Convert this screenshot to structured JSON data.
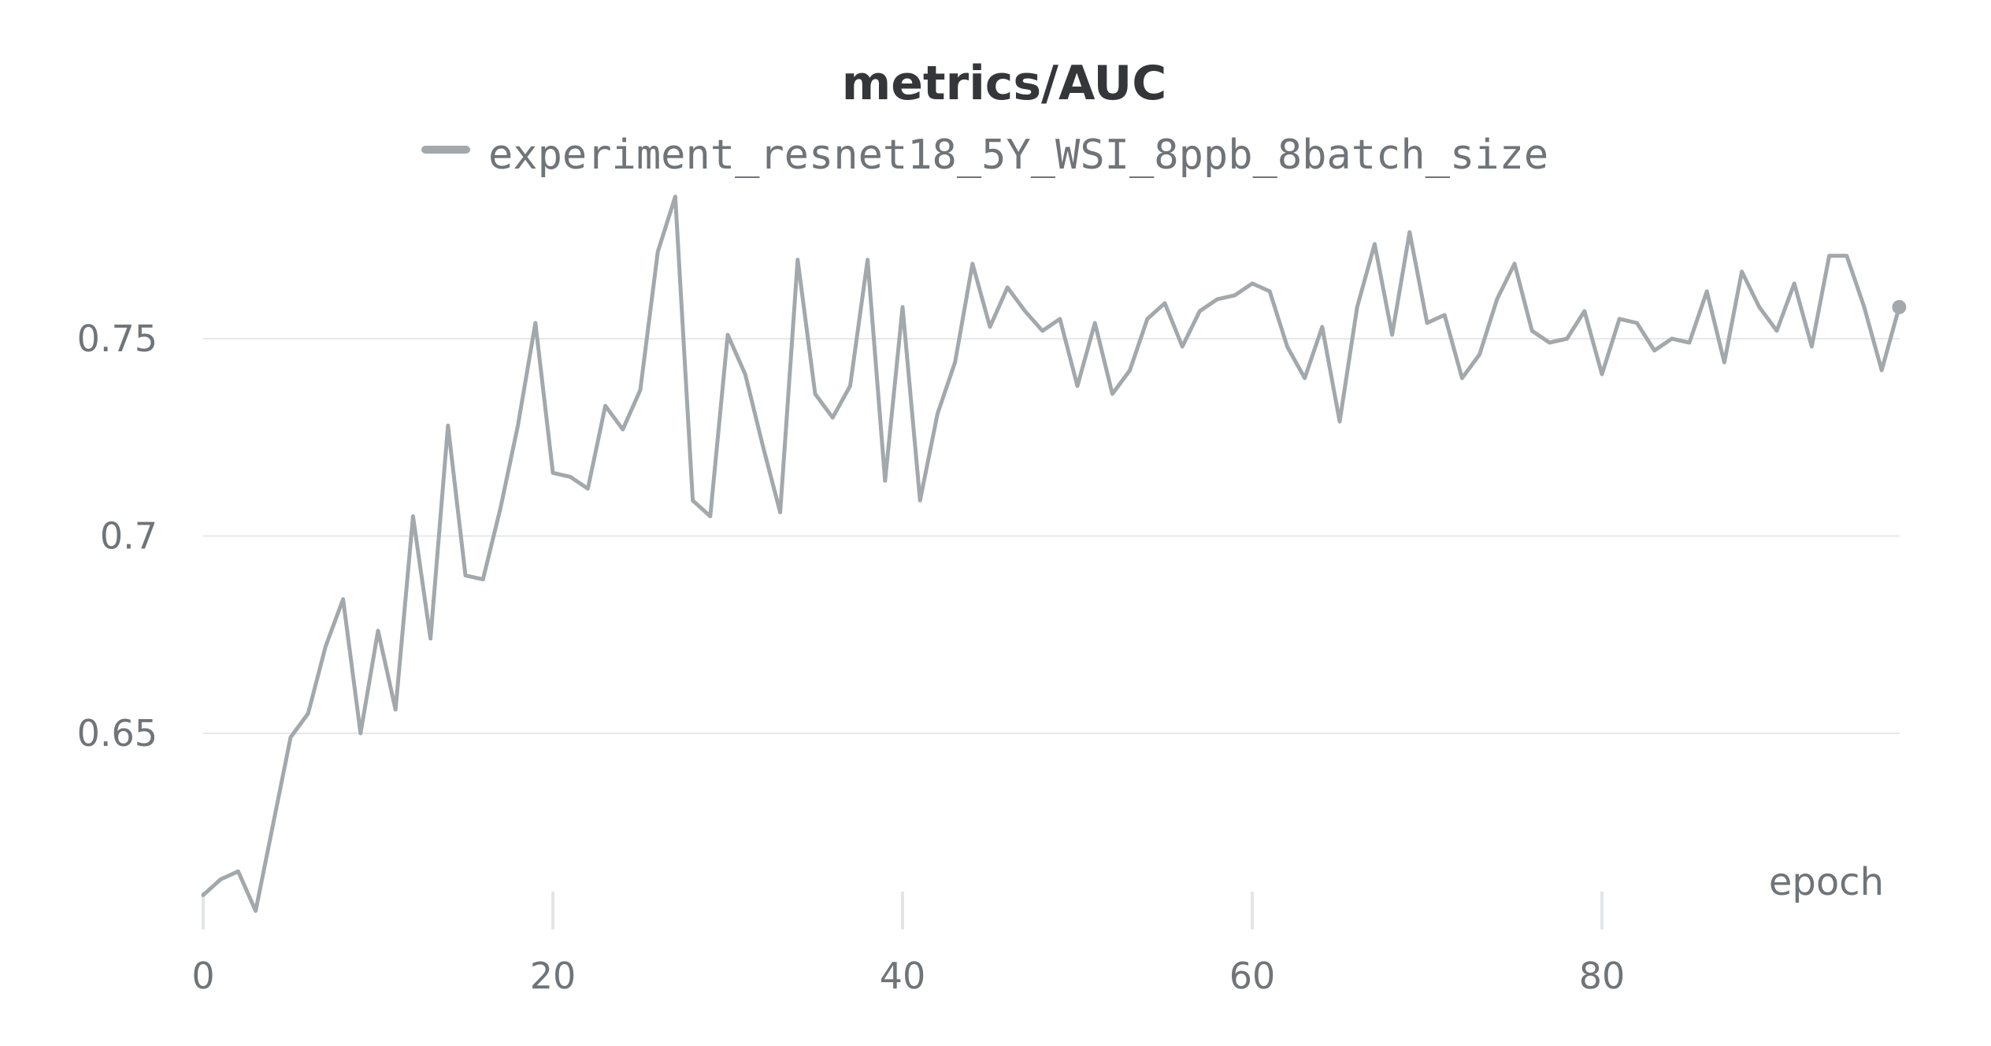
{
  "chart_data": {
    "type": "line",
    "title": "metrics/AUC",
    "xlabel": "epoch",
    "ylabel": "",
    "xlim": [
      0,
      97
    ],
    "ylim": [
      0.603,
      0.787
    ],
    "x_ticks": [
      0,
      20,
      40,
      60,
      80
    ],
    "y_ticks": [
      0.65,
      0.7,
      0.75
    ],
    "y_tick_labels": [
      "0.65",
      "0.7",
      "0.75"
    ],
    "grid": "horizontal",
    "legend_position": "top-center",
    "series": [
      {
        "name": "experiment_resnet18_5Y_WSI_8ppb_8batch_size",
        "color": "#a2a8ab",
        "end_marker": true,
        "x": [
          0,
          1,
          2,
          3,
          4,
          5,
          6,
          7,
          8,
          9,
          10,
          11,
          12,
          13,
          14,
          15,
          16,
          17,
          18,
          19,
          20,
          21,
          22,
          23,
          24,
          25,
          26,
          27,
          28,
          29,
          30,
          31,
          32,
          33,
          34,
          35,
          36,
          37,
          38,
          39,
          40,
          41,
          42,
          43,
          44,
          45,
          46,
          47,
          48,
          49,
          50,
          51,
          52,
          53,
          54,
          55,
          56,
          57,
          58,
          59,
          60,
          61,
          62,
          63,
          64,
          65,
          66,
          67,
          68,
          69,
          70,
          71,
          72,
          73,
          74,
          75,
          76,
          77,
          78,
          79,
          80,
          81,
          82,
          83,
          84,
          85,
          86,
          87,
          88,
          89,
          90,
          91,
          92,
          93,
          94,
          95,
          96,
          97
        ],
        "values": [
          0.609,
          0.613,
          0.615,
          0.605,
          0.627,
          0.649,
          0.655,
          0.672,
          0.684,
          0.65,
          0.676,
          0.656,
          0.705,
          0.674,
          0.728,
          0.69,
          0.689,
          0.707,
          0.728,
          0.754,
          0.716,
          0.715,
          0.712,
          0.733,
          0.727,
          0.737,
          0.772,
          0.786,
          0.709,
          0.705,
          0.751,
          0.741,
          0.723,
          0.706,
          0.77,
          0.736,
          0.73,
          0.738,
          0.77,
          0.714,
          0.758,
          0.709,
          0.731,
          0.744,
          0.769,
          0.753,
          0.763,
          0.757,
          0.752,
          0.755,
          0.738,
          0.754,
          0.736,
          0.742,
          0.755,
          0.759,
          0.748,
          0.757,
          0.76,
          0.761,
          0.764,
          0.762,
          0.748,
          0.74,
          0.753,
          0.729,
          0.758,
          0.774,
          0.751,
          0.777,
          0.754,
          0.756,
          0.74,
          0.746,
          0.76,
          0.769,
          0.752,
          0.749,
          0.75,
          0.757,
          0.741,
          0.755,
          0.754,
          0.747,
          0.75,
          0.749,
          0.762,
          0.744,
          0.767,
          0.758,
          0.752,
          0.764,
          0.748,
          0.771,
          0.771,
          0.758,
          0.742,
          0.758
        ]
      }
    ]
  }
}
